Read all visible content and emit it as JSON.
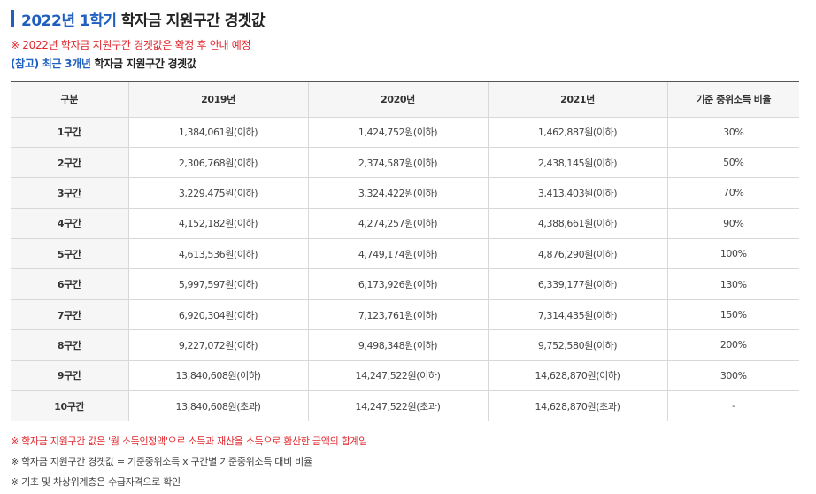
{
  "title": {
    "accent": "2022년 1학기",
    "rest": " 학자금 지원구간 경곗값"
  },
  "notice": "※ 2022년 학자금 지원구간 경곗값은 확정 후 안내 예정",
  "reference": {
    "prefix": "(참고) 최근 3개년",
    "rest": " 학자금 지원구간 경곗값"
  },
  "table": {
    "headers": [
      "구분",
      "2019년",
      "2020년",
      "2021년",
      "기준 중위소득 비율"
    ],
    "rows": [
      [
        "1구간",
        "1,384,061원(이하)",
        "1,424,752원(이하)",
        "1,462,887원(이하)",
        "30%"
      ],
      [
        "2구간",
        "2,306,768원(이하)",
        "2,374,587원(이하)",
        "2,438,145원(이하)",
        "50%"
      ],
      [
        "3구간",
        "3,229,475원(이하)",
        "3,324,422원(이하)",
        "3,413,403원(이하)",
        "70%"
      ],
      [
        "4구간",
        "4,152,182원(이하)",
        "4,274,257원(이하)",
        "4,388,661원(이하)",
        "90%"
      ],
      [
        "5구간",
        "4,613,536원(이하)",
        "4,749,174원(이하)",
        "4,876,290원(이하)",
        "100%"
      ],
      [
        "6구간",
        "5,997,597원(이하)",
        "6,173,926원(이하)",
        "6,339,177원(이하)",
        "130%"
      ],
      [
        "7구간",
        "6,920,304원(이하)",
        "7,123,761원(이하)",
        "7,314,435원(이하)",
        "150%"
      ],
      [
        "8구간",
        "9,227,072원(이하)",
        "9,498,348원(이하)",
        "9,752,580원(이하)",
        "200%"
      ],
      [
        "9구간",
        "13,840,608원(이하)",
        "14,247,522원(이하)",
        "14,628,870원(이하)",
        "300%"
      ],
      [
        "10구간",
        "13,840,608원(초과)",
        "14,247,522원(초과)",
        "14,628,870원(초과)",
        "-"
      ]
    ]
  },
  "footnotes": [
    "※ 학자금 지원구간 값은 '월 소득인정액'으로 소득과 재산을 소득으로 환산한 금액의 합계임",
    "※ 학자금 지원구간 경곗값 = 기준중위소득 x 구간별 기준중위소득 대비 비율",
    "※ 기초 및 차상위계층은 수급자격으로 확인"
  ],
  "colors": {
    "accent": "#1f5fbf",
    "notice": "#e0282e",
    "header_bg": "#f6f6f6"
  }
}
